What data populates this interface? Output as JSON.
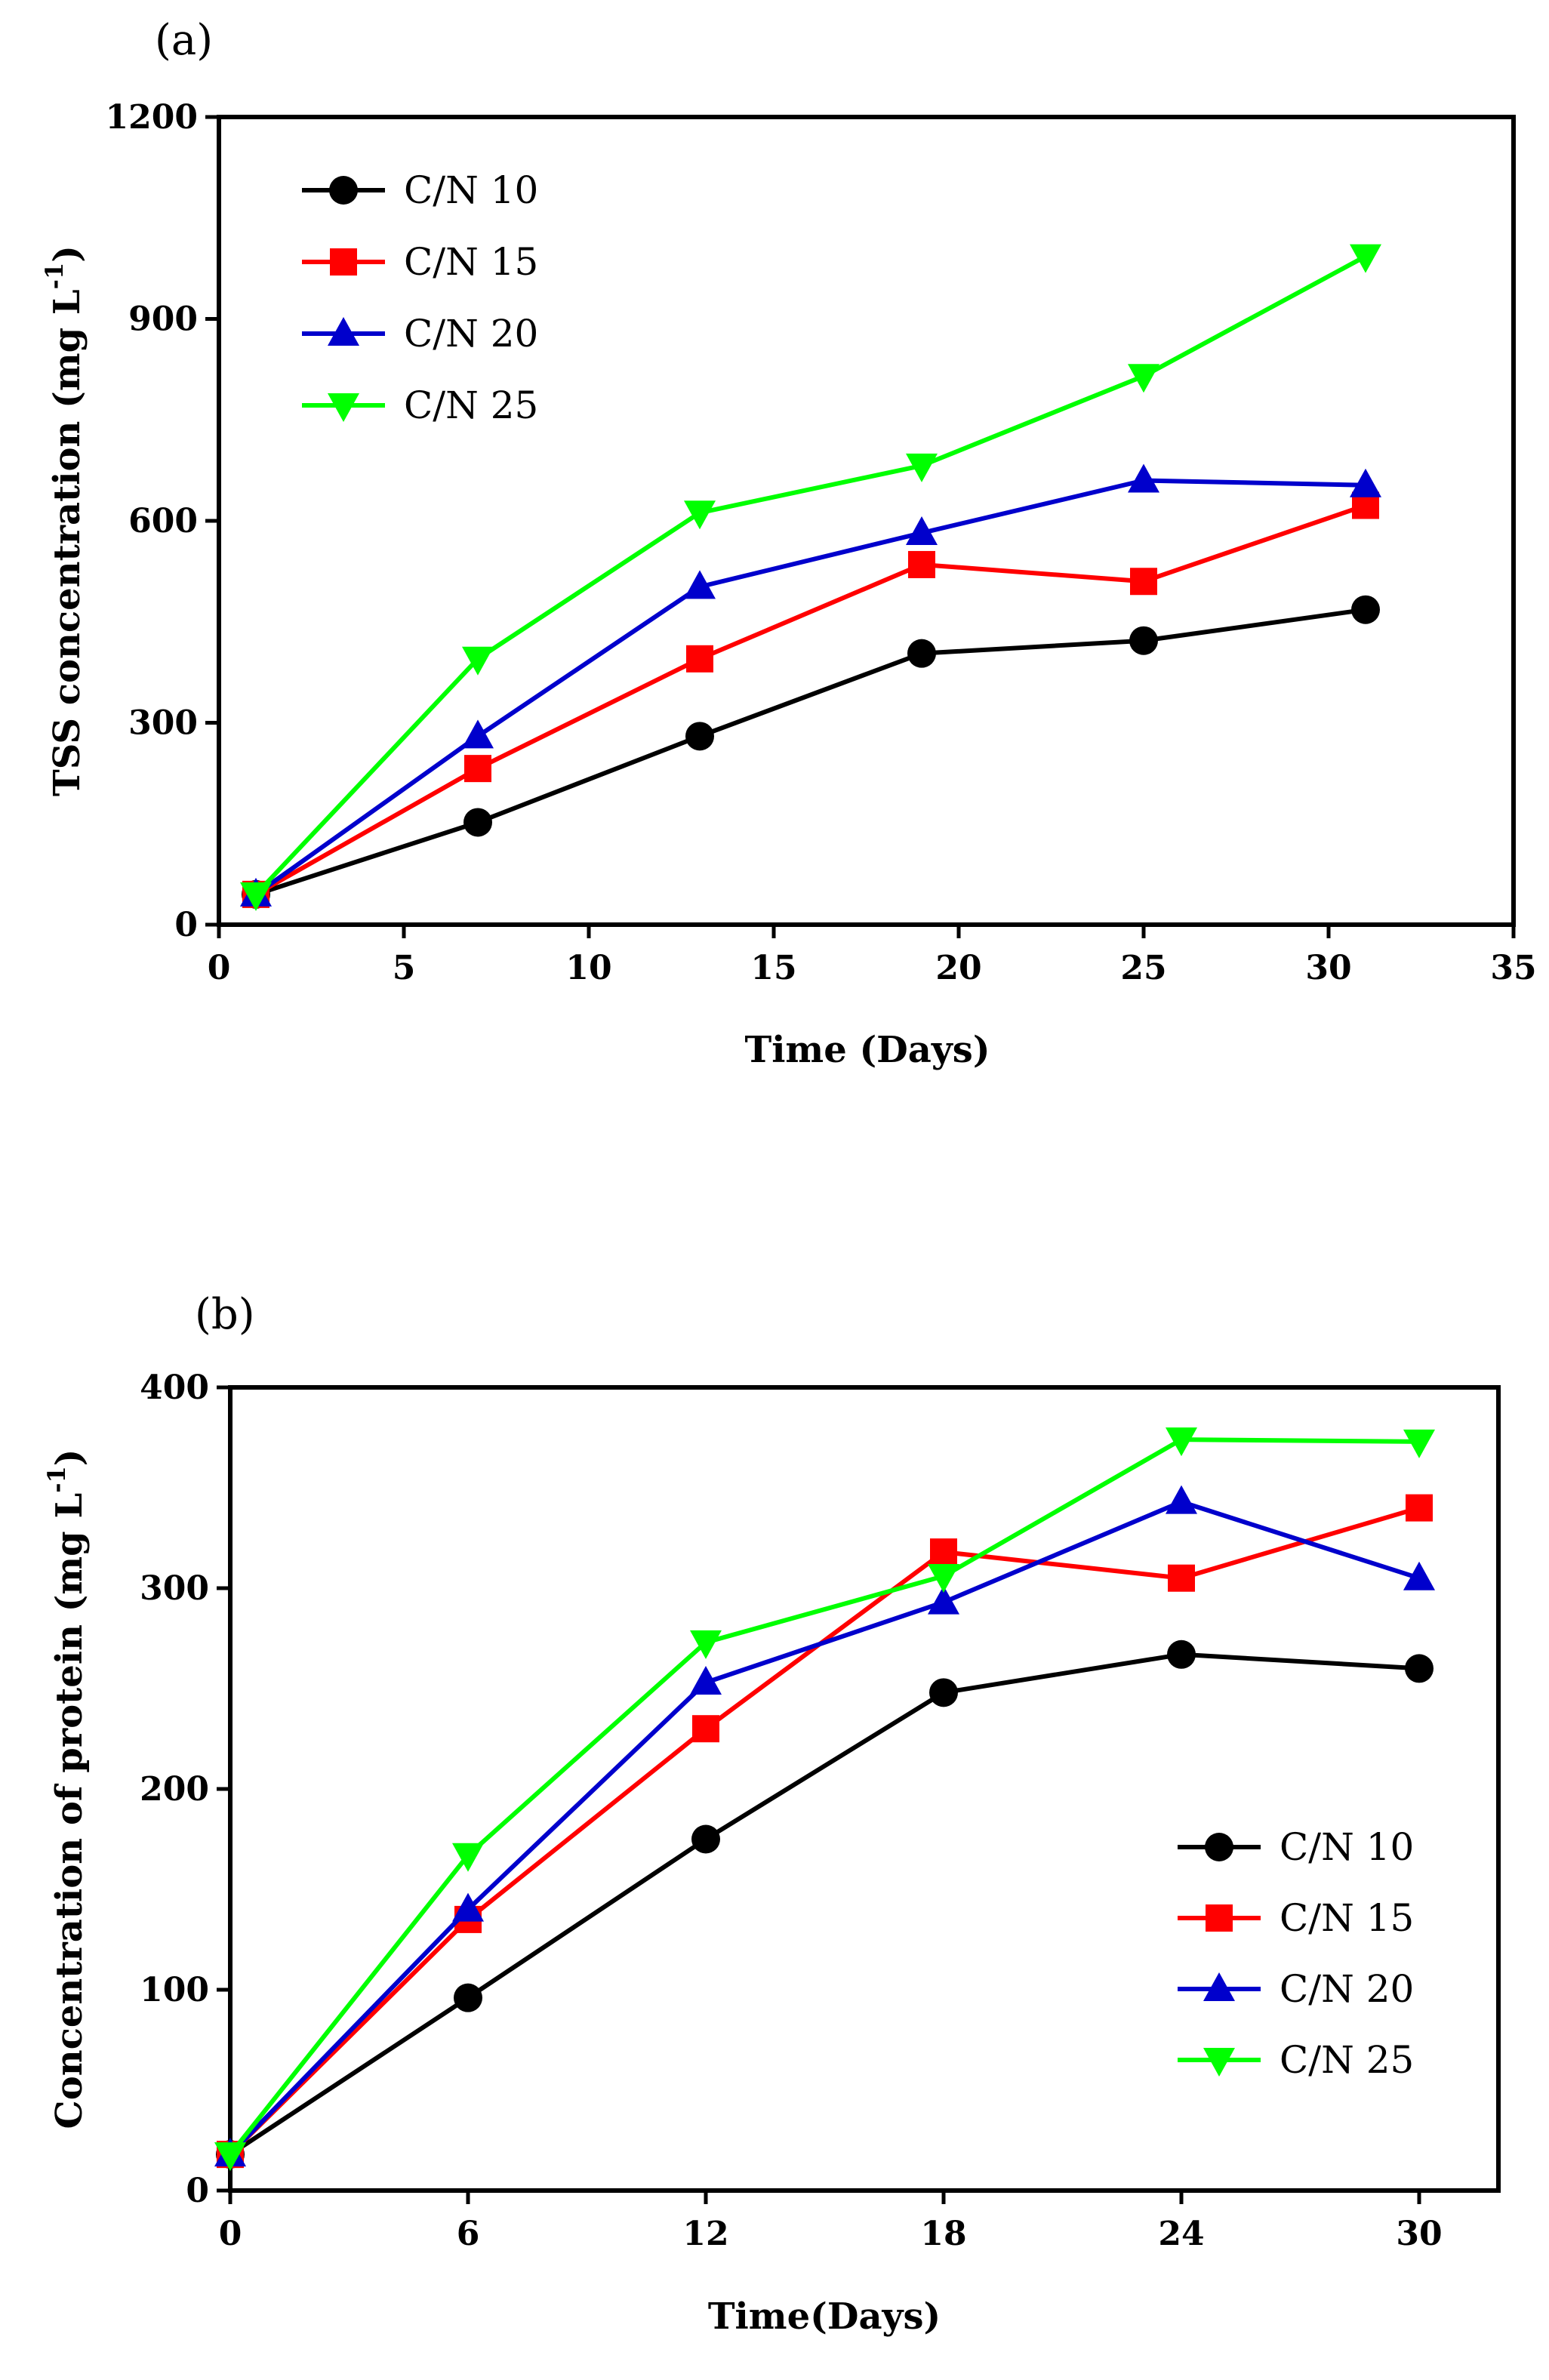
{
  "chart_data": [
    {
      "type": "line",
      "panel_label": "(a)",
      "xlabel": "Time (Days)",
      "ylabel": "TSS concentration (mg L",
      "ylabel_sup": "-1",
      "ylabel_end": ")",
      "xlim": [
        0,
        35
      ],
      "ylim": [
        0,
        1200
      ],
      "xticks": [
        0,
        5,
        10,
        15,
        20,
        25,
        30,
        35
      ],
      "yticks": [
        0,
        300,
        600,
        900,
        1200
      ],
      "x": [
        1,
        7,
        13,
        19,
        25,
        31
      ],
      "legend_position": "top-left",
      "series": [
        {
          "name": "C/N 10",
          "color": "#000000",
          "marker": "circle",
          "values": [
            45,
            152,
            280,
            403,
            422,
            468
          ]
        },
        {
          "name": "C/N 15",
          "color": "#ff0000",
          "marker": "square",
          "values": [
            45,
            232,
            395,
            535,
            510,
            623
          ]
        },
        {
          "name": "C/N 20",
          "color": "#0000cc",
          "marker": "triangle-up",
          "values": [
            45,
            280,
            502,
            582,
            660,
            653
          ]
        },
        {
          "name": "C/N 25",
          "color": "#00ff00",
          "marker": "triangle-down",
          "values": [
            45,
            395,
            612,
            682,
            815,
            993
          ]
        }
      ]
    },
    {
      "type": "line",
      "panel_label": "(b)",
      "xlabel": "Time(Days)",
      "ylabel": "Concentration of protein (mg L",
      "ylabel_sup": "-1",
      "ylabel_end": ")",
      "xlim": [
        0,
        32
      ],
      "ylim": [
        0,
        400
      ],
      "xticks": [
        0,
        6,
        12,
        18,
        24,
        30
      ],
      "yticks": [
        0,
        100,
        200,
        300,
        400
      ],
      "x": [
        0,
        6,
        12,
        18,
        24,
        30
      ],
      "legend_position": "bottom-right",
      "series": [
        {
          "name": "C/N 10",
          "color": "#000000",
          "marker": "circle",
          "values": [
            18,
            96,
            175,
            248,
            267,
            260
          ]
        },
        {
          "name": "C/N 15",
          "color": "#ff0000",
          "marker": "square",
          "values": [
            18,
            135,
            230,
            318,
            305,
            340
          ]
        },
        {
          "name": "C/N 20",
          "color": "#0000cc",
          "marker": "triangle-up",
          "values": [
            18,
            140,
            253,
            293,
            343,
            305
          ]
        },
        {
          "name": "C/N 25",
          "color": "#00ff00",
          "marker": "triangle-down",
          "values": [
            18,
            167,
            273,
            306,
            374,
            373
          ]
        }
      ]
    }
  ]
}
